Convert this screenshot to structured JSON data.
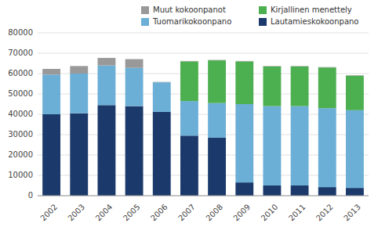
{
  "chart_data": {
    "type": "bar",
    "stacked": true,
    "categories": [
      "2002",
      "2003",
      "2004",
      "2005",
      "2006",
      "2007",
      "2008",
      "2009",
      "2010",
      "2011",
      "2012",
      "2013"
    ],
    "series": [
      {
        "name": "Lautamieskokoonpano",
        "color": "#1B3A6B",
        "values": [
          40000,
          40500,
          44500,
          44000,
          41200,
          29500,
          28500,
          6500,
          5000,
          5000,
          4200,
          3800
        ]
      },
      {
        "name": "Tuomarikokoonpano",
        "color": "#6BAED6",
        "values": [
          19500,
          19500,
          19500,
          18800,
          14500,
          17000,
          17000,
          38500,
          39000,
          39000,
          38800,
          38200
        ]
      },
      {
        "name": "Kirjallinen menettely",
        "color": "#4CAF50",
        "values": [
          0,
          0,
          0,
          0,
          0,
          19500,
          21000,
          21000,
          19500,
          19500,
          20000,
          17000
        ]
      },
      {
        "name": "Muut kokoonpanot",
        "color": "#999999",
        "values": [
          2800,
          3700,
          3700,
          4300,
          200,
          200,
          200,
          200,
          200,
          200,
          200,
          200
        ]
      }
    ],
    "ylim": [
      0,
      80000
    ],
    "yticks": [
      0,
      10000,
      20000,
      30000,
      40000,
      50000,
      60000,
      70000,
      80000
    ],
    "grid": true,
    "legend": "upper right"
  }
}
